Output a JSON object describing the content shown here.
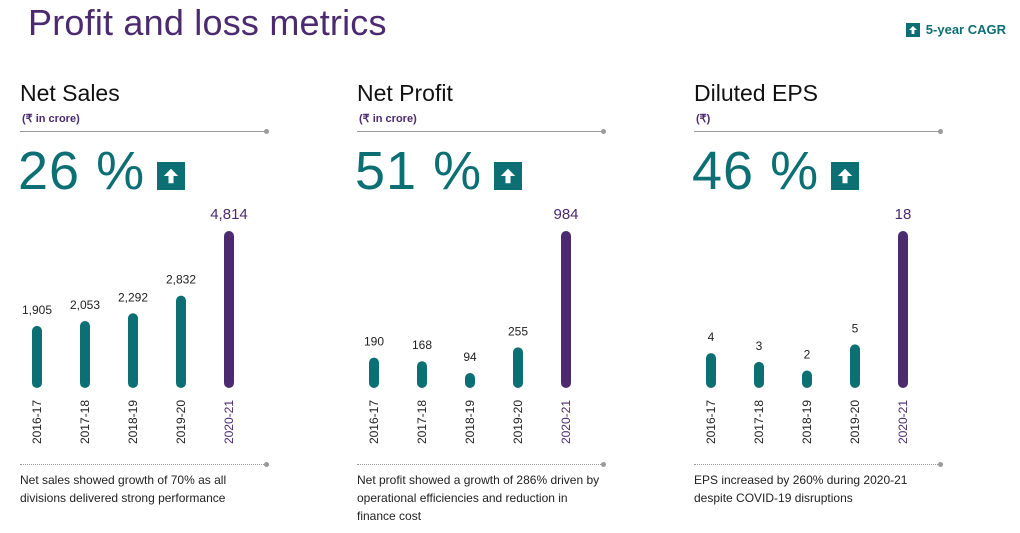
{
  "page": {
    "title": "Profit and loss metrics",
    "legend_label": "5-year CAGR",
    "colors": {
      "teal": "#0c6f73",
      "purple": "#4b2a6f",
      "grey": "#9a9a9a"
    }
  },
  "panels": [
    {
      "title": "Net Sales",
      "unit": "(₹ in crore)",
      "cagr": "26 %",
      "note": "Net sales showed growth of 70% as all divisions delivered strong performance"
    },
    {
      "title": "Net Profit",
      "unit": "(₹ in crore)",
      "cagr": "51 %",
      "note": "Net profit showed a growth of 286% driven by operational efficiencies and reduction in  finance cost"
    },
    {
      "title": "Diluted EPS",
      "unit": "(₹)",
      "cagr": "46 %",
      "note": "EPS increased by 260% during 2020-21 despite COVID-19 disruptions"
    }
  ],
  "chart_data": [
    {
      "type": "bar",
      "title": "Net Sales",
      "categories": [
        "2016-17",
        "2017-18",
        "2018-19",
        "2019-20",
        "2020-21"
      ],
      "values": [
        1905,
        2053,
        2292,
        2832,
        4814
      ],
      "labels": [
        "1,905",
        "2,053",
        "2,292",
        "2,832",
        "4,814"
      ],
      "highlight_last": true
    },
    {
      "type": "bar",
      "title": "Net Profit",
      "categories": [
        "2016-17",
        "2017-18",
        "2018-19",
        "2019-20",
        "2020-21"
      ],
      "values": [
        190,
        168,
        94,
        255,
        984
      ],
      "labels": [
        "190",
        "168",
        "94",
        "255",
        "984"
      ],
      "highlight_last": true
    },
    {
      "type": "bar",
      "title": "Diluted EPS",
      "categories": [
        "2016-17",
        "2017-18",
        "2018-19",
        "2019-20",
        "2020-21"
      ],
      "values": [
        4,
        3,
        2,
        5,
        18
      ],
      "labels": [
        "4",
        "3",
        "2",
        "5",
        "18"
      ],
      "highlight_last": true
    }
  ]
}
